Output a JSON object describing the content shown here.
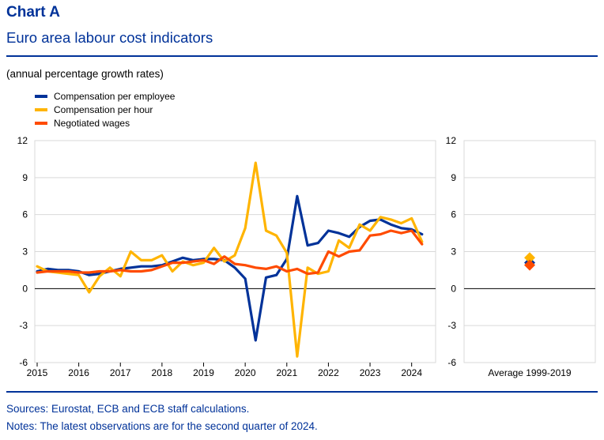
{
  "chart_title": "Chart A",
  "chart_subtitle": "Euro area labour cost indicators",
  "units": "(annual percentage growth rates)",
  "sources": "Sources: Eurostat, ECB and ECB staff calculations.",
  "notes": "Notes: The latest observations are for the second quarter of 2024.",
  "chart_data": [
    {
      "type": "line",
      "title": "Euro area labour cost indicators",
      "ylabel": "annual percentage growth rates",
      "ylim": [
        -6,
        12
      ],
      "yticks": [
        12,
        9,
        6,
        3,
        0,
        -3,
        -6
      ],
      "xlim": [
        2015.0,
        2024.5
      ],
      "xticks": [
        "2015",
        "2016",
        "2017",
        "2018",
        "2019",
        "2020",
        "2021",
        "2022",
        "2023",
        "2024"
      ],
      "legend_position": "top-left",
      "grid": true,
      "series": [
        {
          "name": "Compensation per employee",
          "color": "#003299",
          "x": [
            2015.0,
            2015.25,
            2015.5,
            2015.75,
            2016.0,
            2016.25,
            2016.5,
            2016.75,
            2017.0,
            2017.25,
            2017.5,
            2017.75,
            2018.0,
            2018.25,
            2018.5,
            2018.75,
            2019.0,
            2019.25,
            2019.5,
            2019.75,
            2020.0,
            2020.25,
            2020.5,
            2020.75,
            2021.0,
            2021.25,
            2021.5,
            2021.75,
            2022.0,
            2022.25,
            2022.5,
            2022.75,
            2023.0,
            2023.25,
            2023.5,
            2023.75,
            2024.0,
            2024.25
          ],
          "values": [
            1.4,
            1.6,
            1.5,
            1.5,
            1.4,
            1.1,
            1.2,
            1.4,
            1.6,
            1.7,
            1.8,
            1.8,
            1.9,
            2.2,
            2.5,
            2.3,
            2.4,
            2.4,
            2.3,
            1.7,
            0.8,
            -4.2,
            0.9,
            1.1,
            2.4,
            7.5,
            3.5,
            3.7,
            4.7,
            4.5,
            4.2,
            5.0,
            5.5,
            5.6,
            5.2,
            4.9,
            4.8,
            4.4
          ]
        },
        {
          "name": "Compensation per hour",
          "color": "#FFB400",
          "x": [
            2015.0,
            2015.25,
            2015.5,
            2015.75,
            2016.0,
            2016.25,
            2016.5,
            2016.75,
            2017.0,
            2017.25,
            2017.5,
            2017.75,
            2018.0,
            2018.25,
            2018.5,
            2018.75,
            2019.0,
            2019.25,
            2019.5,
            2019.75,
            2020.0,
            2020.25,
            2020.5,
            2020.75,
            2021.0,
            2021.25,
            2021.5,
            2021.75,
            2022.0,
            2022.25,
            2022.5,
            2022.75,
            2023.0,
            2023.25,
            2023.5,
            2023.75,
            2024.0,
            2024.25
          ],
          "values": [
            1.8,
            1.4,
            1.3,
            1.2,
            1.1,
            -0.3,
            1.0,
            1.7,
            1.0,
            3.0,
            2.3,
            2.3,
            2.7,
            1.4,
            2.2,
            1.9,
            2.1,
            3.3,
            2.2,
            2.7,
            4.9,
            10.2,
            4.7,
            4.3,
            2.9,
            -5.5,
            1.7,
            1.2,
            1.4,
            3.9,
            3.3,
            5.2,
            4.7,
            5.8,
            5.6,
            5.3,
            5.7,
            3.8
          ]
        },
        {
          "name": "Negotiated wages",
          "color": "#FF4B00",
          "x": [
            2015.0,
            2015.25,
            2015.5,
            2015.75,
            2016.0,
            2016.25,
            2016.5,
            2016.75,
            2017.0,
            2017.25,
            2017.5,
            2017.75,
            2018.0,
            2018.25,
            2018.5,
            2018.75,
            2019.0,
            2019.25,
            2019.5,
            2019.75,
            2020.0,
            2020.25,
            2020.5,
            2020.75,
            2021.0,
            2021.25,
            2021.5,
            2021.75,
            2022.0,
            2022.25,
            2022.5,
            2022.75,
            2023.0,
            2023.25,
            2023.5,
            2023.75,
            2024.0,
            2024.25
          ],
          "values": [
            1.3,
            1.4,
            1.4,
            1.4,
            1.3,
            1.3,
            1.4,
            1.4,
            1.5,
            1.4,
            1.4,
            1.5,
            1.8,
            2.1,
            2.1,
            2.2,
            2.3,
            2.0,
            2.6,
            2.0,
            1.9,
            1.7,
            1.6,
            1.8,
            1.4,
            1.6,
            1.2,
            1.3,
            3.0,
            2.6,
            3.0,
            3.1,
            4.3,
            4.4,
            4.7,
            4.5,
            4.7,
            3.6
          ]
        }
      ]
    },
    {
      "type": "scatter",
      "title": "Average 1999-2019",
      "category": "Average 1999-2019",
      "ylim": [
        -6,
        12
      ],
      "yticks": [
        12,
        9,
        6,
        3,
        0,
        -3,
        -6
      ],
      "points": [
        {
          "name": "Compensation per employee",
          "color": "#003299",
          "value": 2.1
        },
        {
          "name": "Compensation per hour",
          "color": "#FFB400",
          "value": 2.5
        },
        {
          "name": "Negotiated wages",
          "color": "#FF4B00",
          "value": 1.9
        }
      ]
    }
  ]
}
